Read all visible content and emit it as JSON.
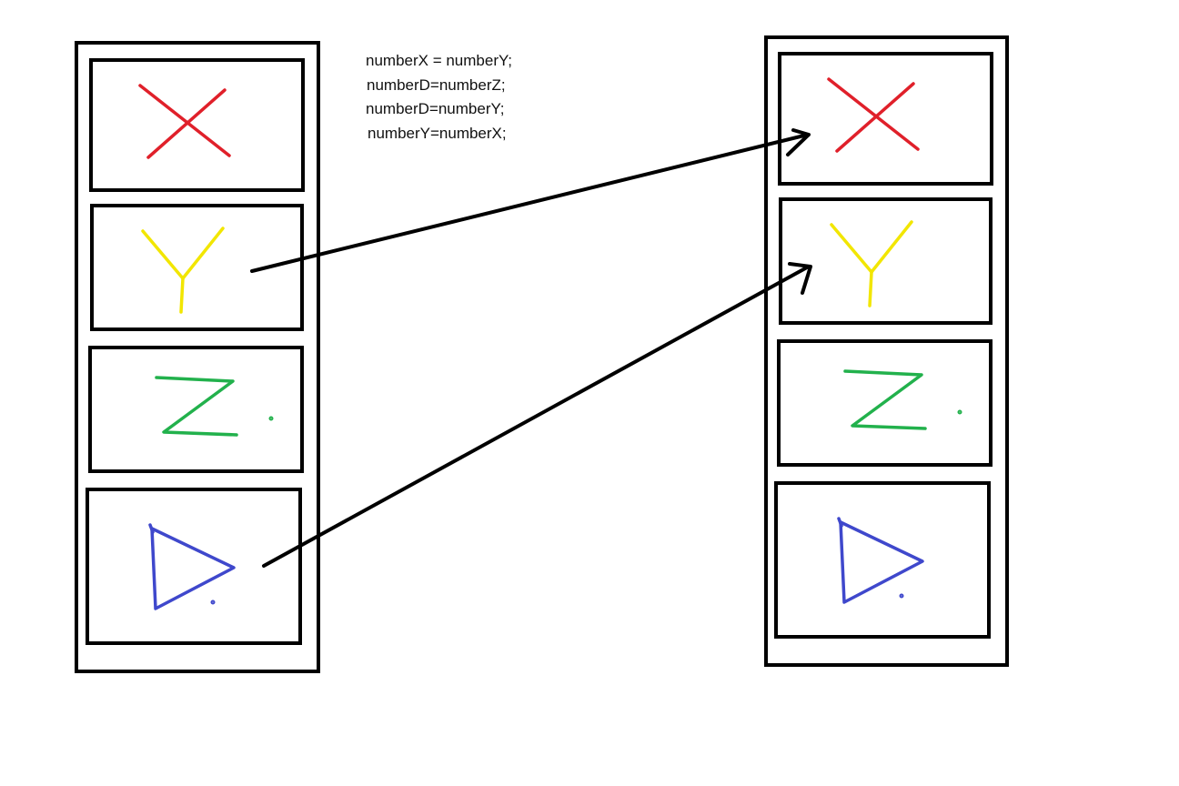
{
  "code": {
    "lines": [
      "numberX = numberY;",
      "numberD=numberZ;",
      "numberD=numberY;",
      "numberY=numberX;"
    ]
  },
  "columns": [
    {
      "name": "left-column",
      "slots": [
        {
          "name": "slot-x",
          "symbol": "x-mark-icon",
          "color": "#e0202a"
        },
        {
          "name": "slot-y",
          "symbol": "y-letter-icon",
          "color": "#f2e600"
        },
        {
          "name": "slot-z",
          "symbol": "z-letter-icon",
          "color": "#22b14c"
        },
        {
          "name": "slot-d",
          "symbol": "triangle-icon",
          "color": "#3f48cc"
        }
      ]
    },
    {
      "name": "right-column",
      "slots": [
        {
          "name": "slot-x",
          "symbol": "x-mark-icon",
          "color": "#e0202a"
        },
        {
          "name": "slot-y",
          "symbol": "y-letter-icon",
          "color": "#f2e600"
        },
        {
          "name": "slot-z",
          "symbol": "z-letter-icon",
          "color": "#22b14c"
        },
        {
          "name": "slot-d",
          "symbol": "triangle-icon",
          "color": "#3f48cc"
        }
      ]
    }
  ],
  "arrows": [
    {
      "name": "arrow-y-to-x",
      "from": "left-column.slot-y",
      "to": "right-column.slot-x"
    },
    {
      "name": "arrow-d-to-y",
      "from": "left-column.slot-d",
      "to": "right-column.slot-y"
    }
  ]
}
